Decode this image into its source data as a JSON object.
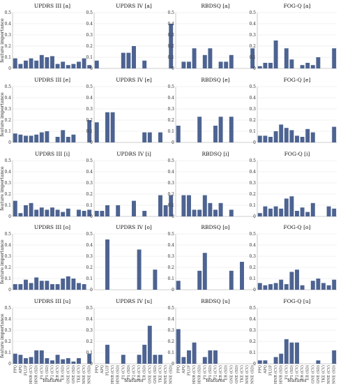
{
  "y_axis_label": "feature importance",
  "x_axis_label": "features",
  "features": [
    "PPQ",
    "APQ",
    "FLUF",
    "HNR (CV)",
    "HNR (SD)",
    "F1 (CV)",
    "F1 (SD)",
    "F2 (CV)",
    "ER (CV)",
    "ER (SD)",
    "GNE (CV)",
    "GNE (SD)",
    "TKE (CV)",
    "NNE (CV)",
    "NNE (SD)"
  ],
  "chart_data": [
    {
      "type": "bar",
      "title": "UPDRS III [a]",
      "ylim": [
        0,
        0.5
      ],
      "values": [
        0.09,
        0.04,
        0.07,
        0.09,
        0.07,
        0.12,
        0.1,
        0.11,
        0.04,
        0.06,
        0.03,
        0.04,
        0.06,
        0.09,
        0.03
      ]
    },
    {
      "type": "bar",
      "title": "UPDRS IV [a]",
      "ylim": [
        0,
        0.5
      ],
      "values": [
        0.07,
        0,
        0,
        0,
        0,
        0.14,
        0.14,
        0.2,
        0,
        0.07,
        0,
        0,
        0,
        0,
        0.4
      ]
    },
    {
      "type": "bar",
      "title": "RBDSQ [a]",
      "ylim": [
        0,
        0.5
      ],
      "values": [
        0,
        0.06,
        0.06,
        0.18,
        0,
        0.12,
        0.18,
        0,
        0.06,
        0.06,
        0.12,
        0,
        0,
        0,
        0.18
      ]
    },
    {
      "type": "bar",
      "title": "FOG-Q [a]",
      "ylim": [
        0,
        0.5
      ],
      "values": [
        0.02,
        0.05,
        0.05,
        0.25,
        0,
        0.18,
        0.08,
        0,
        0.03,
        0.05,
        0.03,
        0.1,
        0,
        0,
        0.18
      ]
    },
    {
      "type": "bar",
      "title": "UPDRS III [e]",
      "ylim": [
        0,
        0.5
      ],
      "values": [
        0.08,
        0.07,
        0.06,
        0.06,
        0.07,
        0.09,
        0.1,
        0,
        0.05,
        0.11,
        0.05,
        0.07,
        0,
        0,
        0.2
      ]
    },
    {
      "type": "bar",
      "title": "UPDRS IV [e]",
      "ylim": [
        0,
        0.5
      ],
      "values": [
        0.18,
        0,
        0.27,
        0.27,
        0,
        0,
        0,
        0,
        0,
        0.09,
        0.09,
        0,
        0.09,
        0,
        0
      ]
    },
    {
      "type": "bar",
      "title": "RBDSQ [e]",
      "ylim": [
        0,
        0.5
      ],
      "values": [
        0.15,
        0,
        0,
        0,
        0.23,
        0,
        0,
        0.15,
        0.23,
        0,
        0.23,
        0,
        0,
        0,
        0
      ]
    },
    {
      "type": "bar",
      "title": "FOG-Q [e]",
      "ylim": [
        0,
        0.5
      ],
      "values": [
        0.06,
        0.06,
        0.05,
        0.1,
        0.16,
        0.13,
        0.11,
        0.06,
        0.05,
        0.12,
        0.09,
        0,
        0,
        0,
        0.14
      ]
    },
    {
      "type": "bar",
      "title": "UPDRS III [i]",
      "ylim": [
        0,
        0.5
      ],
      "values": [
        0.14,
        0.03,
        0.1,
        0.12,
        0.06,
        0.08,
        0.06,
        0.08,
        0.06,
        0.04,
        0.07,
        0,
        0.06,
        0.05,
        0.06
      ]
    },
    {
      "type": "bar",
      "title": "UPDRS IV [i]",
      "ylim": [
        0,
        0.5
      ],
      "values": [
        0.05,
        0.05,
        0.1,
        0,
        0.1,
        0,
        0,
        0.14,
        0,
        0.05,
        0,
        0,
        0.19,
        0.1,
        0.19
      ]
    },
    {
      "type": "bar",
      "title": "RBDSQ [i]",
      "ylim": [
        0,
        0.5
      ],
      "values": [
        0,
        0.19,
        0.19,
        0.06,
        0.06,
        0.19,
        0.12,
        0.06,
        0.12,
        0,
        0.06,
        0,
        0,
        0,
        0
      ]
    },
    {
      "type": "bar",
      "title": "FOG-Q [i]",
      "ylim": [
        0,
        0.5
      ],
      "values": [
        0.03,
        0.09,
        0.07,
        0.09,
        0.07,
        0.16,
        0.18,
        0.05,
        0.08,
        0.04,
        0.12,
        0,
        0,
        0.09,
        0.07
      ]
    },
    {
      "type": "bar",
      "title": "UPDRS III [o]",
      "ylim": [
        0,
        0.5
      ],
      "values": [
        0.05,
        0.05,
        0.09,
        0.06,
        0.11,
        0.08,
        0.08,
        0.05,
        0.05,
        0.1,
        0.12,
        0.1,
        0.06,
        0.05,
        0
      ]
    },
    {
      "type": "bar",
      "title": "UPDRS IV [o]",
      "ylim": [
        0,
        0.5
      ],
      "values": [
        0,
        0,
        0.45,
        0,
        0,
        0,
        0,
        0,
        0.36,
        0,
        0,
        0.18,
        0,
        0,
        0
      ]
    },
    {
      "type": "bar",
      "title": "RBDSQ [o]",
      "ylim": [
        0,
        0.5
      ],
      "values": [
        0.08,
        0,
        0,
        0,
        0.17,
        0.33,
        0,
        0,
        0,
        0,
        0.17,
        0,
        0.25,
        0,
        0
      ]
    },
    {
      "type": "bar",
      "title": "FOG-Q [o]",
      "ylim": [
        0,
        0.5
      ],
      "values": [
        0.06,
        0.04,
        0.05,
        0.06,
        0.09,
        0.05,
        0.16,
        0.18,
        0.04,
        0,
        0.08,
        0.1,
        0.06,
        0.04,
        0.09
      ]
    },
    {
      "type": "bar",
      "title": "UPDRS III [u]",
      "ylim": [
        0,
        0.5
      ],
      "values": [
        0.09,
        0.08,
        0.05,
        0.06,
        0.12,
        0.12,
        0.05,
        0.03,
        0.08,
        0.04,
        0.05,
        0.02,
        0.05,
        0,
        0.09
      ]
    },
    {
      "type": "bar",
      "title": "UPDRS IV [u]",
      "ylim": [
        0,
        0.5
      ],
      "values": [
        0,
        0,
        0.17,
        0,
        0,
        0.08,
        0,
        0,
        0.08,
        0.17,
        0.34,
        0.08,
        0.08,
        0,
        0
      ]
    },
    {
      "type": "bar",
      "title": "RBDSQ [u]",
      "ylim": [
        0,
        0.5
      ],
      "values": [
        0.31,
        0.06,
        0.12,
        0.19,
        0,
        0.06,
        0.12,
        0.12,
        0,
        0,
        0,
        0,
        0,
        0,
        0
      ]
    },
    {
      "type": "bar",
      "title": "FOG-Q [u]",
      "ylim": [
        0,
        0.5
      ],
      "values": [
        0.03,
        0.03,
        0,
        0.06,
        0.09,
        0.22,
        0.19,
        0.19,
        0,
        0,
        0,
        0.03,
        0,
        0,
        0.12
      ]
    }
  ]
}
